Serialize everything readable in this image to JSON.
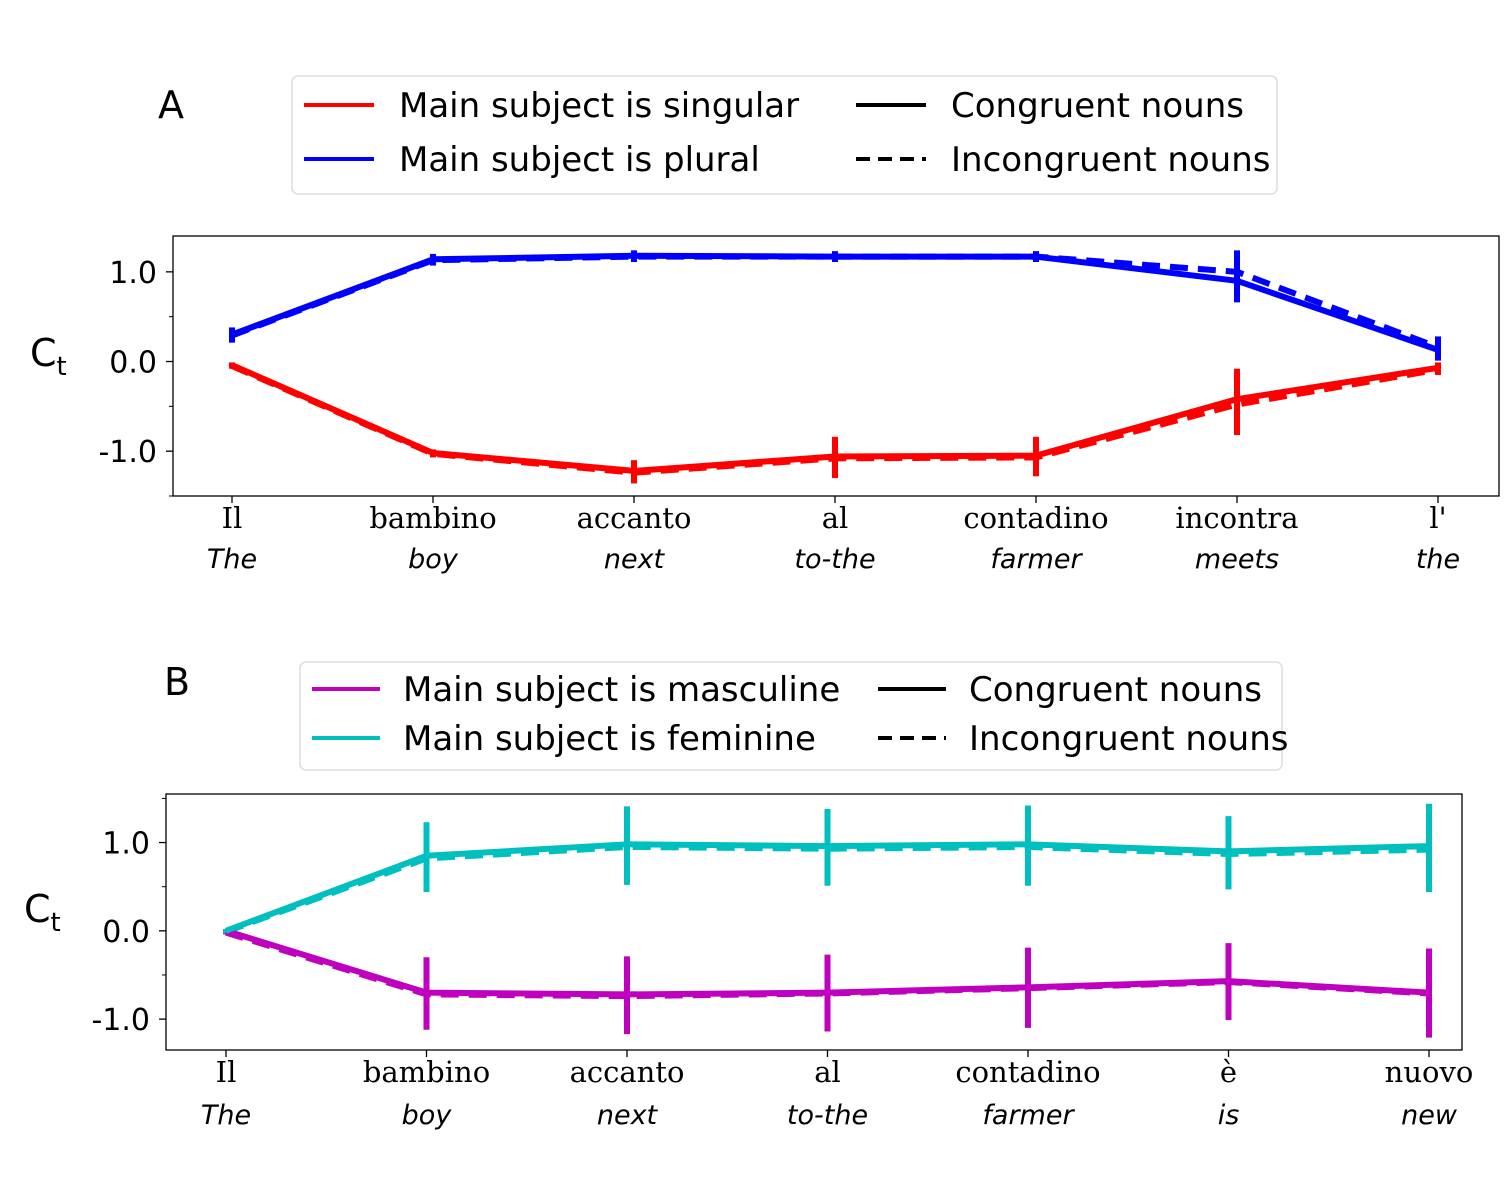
{
  "chart_data": [
    {
      "panel": "A",
      "type": "line",
      "ylabel": "C",
      "ylabel_sub": "t",
      "ylim": [
        -1.5,
        1.4
      ],
      "yticks": [
        -1.0,
        0.0,
        1.0
      ],
      "ytick_labels": [
        "-1.0",
        "0.0",
        "1.0"
      ],
      "categories": [
        "Il",
        "bambino",
        "accanto",
        "al",
        "contadino",
        "incontra",
        "l'"
      ],
      "glosses": [
        "The",
        "boy",
        "next",
        "to-the",
        "farmer",
        "meets",
        "the"
      ],
      "legend": {
        "color_entries": [
          {
            "label": "Main subject is singular",
            "color": "#ff0000"
          },
          {
            "label": "Main subject is plural",
            "color": "#0000ff"
          }
        ],
        "style_entries": [
          {
            "label": "Congruent nouns",
            "style": "solid"
          },
          {
            "label": "Incongruent nouns",
            "style": "dashed"
          }
        ]
      },
      "series": [
        {
          "group": "singular",
          "style": "solid",
          "color": "#ff0000",
          "values": [
            -0.04,
            -1.02,
            -1.22,
            -1.06,
            -1.05,
            -0.42,
            -0.07
          ],
          "errors": [
            0.03,
            0.04,
            0.12,
            0.22,
            0.21,
            0.34,
            0.06
          ]
        },
        {
          "group": "singular",
          "style": "dashed",
          "color": "#ff0000",
          "values": [
            -0.05,
            -1.03,
            -1.24,
            -1.08,
            -1.07,
            -0.48,
            -0.09
          ],
          "errors": [
            0.03,
            0.04,
            0.12,
            0.22,
            0.21,
            0.34,
            0.06
          ]
        },
        {
          "group": "plural",
          "style": "solid",
          "color": "#0000ff",
          "values": [
            0.3,
            1.14,
            1.18,
            1.17,
            1.17,
            0.9,
            0.13
          ],
          "errors": [
            0.08,
            0.06,
            0.06,
            0.06,
            0.06,
            0.24,
            0.12
          ]
        },
        {
          "group": "plural",
          "style": "dashed",
          "color": "#0000ff",
          "values": [
            0.29,
            1.13,
            1.17,
            1.17,
            1.17,
            1.0,
            0.16
          ],
          "errors": [
            0.08,
            0.06,
            0.06,
            0.06,
            0.06,
            0.24,
            0.12
          ]
        }
      ]
    },
    {
      "panel": "B",
      "type": "line",
      "ylabel": "C",
      "ylabel_sub": "t",
      "ylim": [
        -1.35,
        1.55
      ],
      "yticks": [
        -1.0,
        0.0,
        1.0
      ],
      "ytick_labels": [
        "-1.0",
        "0.0",
        "1.0"
      ],
      "categories": [
        "Il",
        "bambino",
        "accanto",
        "al",
        "contadino",
        "è",
        "nuovo"
      ],
      "glosses": [
        "The",
        "boy",
        "next",
        "to-the",
        "farmer",
        "is",
        "new"
      ],
      "legend": {
        "color_entries": [
          {
            "label": "Main subject is masculine",
            "color": "#bf00bf"
          },
          {
            "label": "Main subject is feminine",
            "color": "#00bfbf"
          }
        ],
        "style_entries": [
          {
            "label": "Congruent nouns",
            "style": "solid"
          },
          {
            "label": "Incongruent nouns",
            "style": "dashed"
          }
        ]
      },
      "series": [
        {
          "group": "masculine",
          "style": "solid",
          "color": "#bf00bf",
          "values": [
            0.0,
            -0.7,
            -0.72,
            -0.7,
            -0.64,
            -0.57,
            -0.7
          ],
          "errors": [
            0.02,
            0.4,
            0.43,
            0.43,
            0.45,
            0.43,
            0.5
          ]
        },
        {
          "group": "masculine",
          "style": "dashed",
          "color": "#bf00bf",
          "values": [
            -0.02,
            -0.72,
            -0.74,
            -0.71,
            -0.65,
            -0.58,
            -0.71
          ],
          "errors": [
            0.02,
            0.4,
            0.43,
            0.43,
            0.45,
            0.43,
            0.5
          ]
        },
        {
          "group": "feminine",
          "style": "solid",
          "color": "#00bfbf",
          "values": [
            0.0,
            0.85,
            0.98,
            0.96,
            0.98,
            0.9,
            0.96
          ],
          "errors": [
            0.02,
            0.38,
            0.43,
            0.42,
            0.44,
            0.4,
            0.48
          ]
        },
        {
          "group": "feminine",
          "style": "dashed",
          "color": "#00bfbf",
          "values": [
            -0.01,
            0.82,
            0.95,
            0.93,
            0.95,
            0.87,
            0.92
          ],
          "errors": [
            0.02,
            0.38,
            0.43,
            0.42,
            0.44,
            0.4,
            0.48
          ]
        }
      ]
    }
  ]
}
